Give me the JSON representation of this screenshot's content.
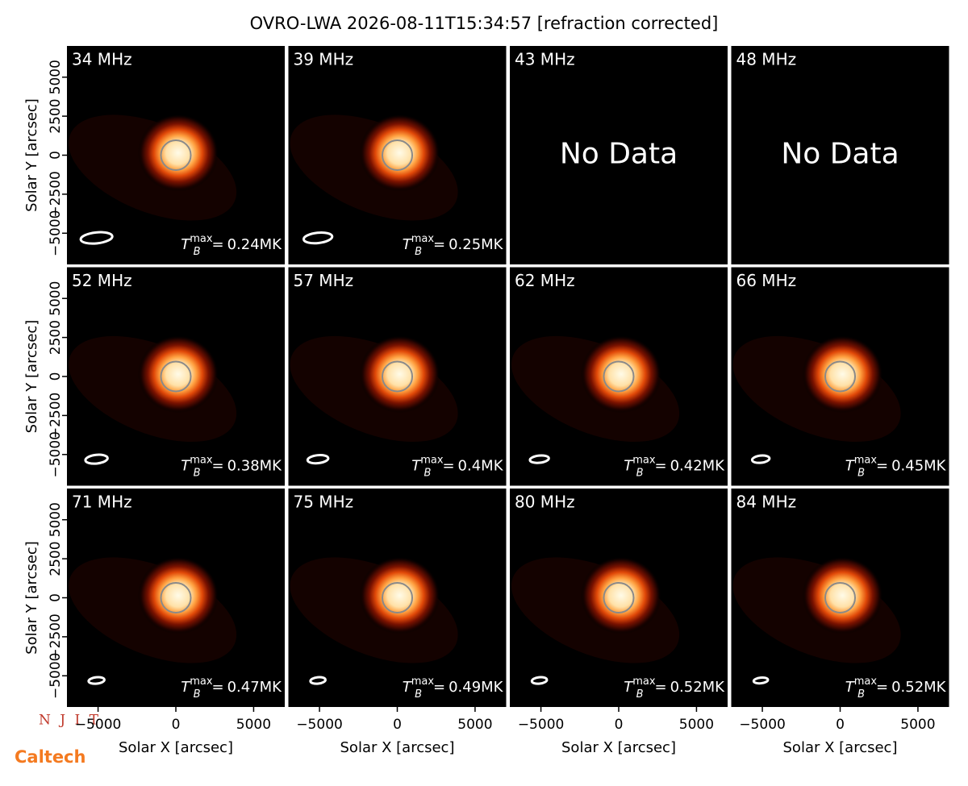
{
  "chart_data": {
    "type": "image_grid",
    "title": "OVRO-LWA 2026-08-11T15:34:57 [refraction corrected]",
    "xlabel": "Solar X [arcsec]",
    "ylabel": "Solar Y [arcsec]",
    "xlim": [
      -7000,
      7000
    ],
    "ylim": [
      -7000,
      7000
    ],
    "xticks": [
      {
        "value": -5000,
        "label": "−5000"
      },
      0,
      5000
    ],
    "yticks": [
      {
        "value": -5000,
        "label": "−5000"
      },
      {
        "value": -2500,
        "label": "−2500"
      },
      0,
      2500,
      5000
    ],
    "solar_radius": 960,
    "tb_symbol": "T",
    "tb_sub": "B",
    "tb_sup": "max",
    "tb_eq": "=",
    "logos": [
      "N J I T",
      "Caltech"
    ],
    "panels": [
      {
        "label": "34 MHz",
        "tb": 0.24,
        "tb_label": "0.24MK",
        "beam": [
          2040,
          700
        ]
      },
      {
        "label": "39 MHz",
        "tb": 0.25,
        "tb_label": "0.25MK",
        "beam": [
          1840,
          660
        ]
      },
      {
        "label": "43 MHz",
        "status": "No Data"
      },
      {
        "label": "48 MHz",
        "status": "No Data"
      },
      {
        "label": "52 MHz",
        "tb": 0.38,
        "tb_label": "0.38MK",
        "beam": [
          1430,
          560
        ]
      },
      {
        "label": "57 MHz",
        "tb": 0.4,
        "tb_label": "0.4MK",
        "beam": [
          1330,
          510
        ]
      },
      {
        "label": "62 MHz",
        "tb": 0.42,
        "tb_label": "0.42MK",
        "beam": [
          1220,
          460
        ]
      },
      {
        "label": "66 MHz",
        "tb": 0.45,
        "tb_label": "0.45MK",
        "beam": [
          1120,
          460
        ]
      },
      {
        "label": "71 MHz",
        "tb": 0.47,
        "tb_label": "0.47MK",
        "beam": [
          1020,
          410
        ]
      },
      {
        "label": "75 MHz",
        "tb": 0.49,
        "tb_label": "0.49MK",
        "beam": [
          970,
          410
        ]
      },
      {
        "label": "80 MHz",
        "tb": 0.52,
        "tb_label": "0.52MK",
        "beam": [
          970,
          410
        ]
      },
      {
        "label": "84 MHz",
        "tb": 0.52,
        "tb_label": "0.52MK",
        "beam": [
          920,
          360
        ]
      }
    ]
  }
}
